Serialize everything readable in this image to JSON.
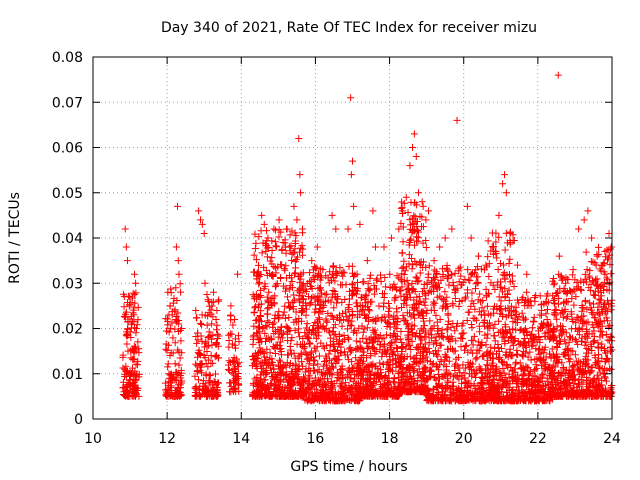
{
  "chart_data": {
    "type": "scatter",
    "title": "Day 340 of 2021, Rate Of TEC Index for receiver mizu",
    "xlabel": "GPS time / hours",
    "ylabel": "ROTI / TECUs",
    "xlim": [
      10,
      24
    ],
    "ylim": [
      0,
      0.08
    ],
    "x_ticks": [
      10,
      12,
      14,
      16,
      18,
      20,
      22,
      24
    ],
    "y_ticks": [
      0,
      0.01,
      0.02,
      0.03,
      0.04,
      0.05,
      0.06,
      0.07,
      0.08
    ],
    "x_tick_labels": [
      "10",
      "12",
      "14",
      "16",
      "18",
      "20",
      "22",
      "24"
    ],
    "y_tick_labels": [
      "0",
      "0.01",
      "0.02",
      "0.03",
      "0.04",
      "0.05",
      "0.06",
      "0.07",
      "0.08"
    ],
    "grid": true,
    "legend": "none",
    "marker": "+",
    "marker_color": "#ff0000",
    "series": [
      {
        "points": [
          [
            10.87,
            0.042
          ],
          [
            10.9,
            0.038
          ],
          [
            10.93,
            0.035
          ],
          [
            10.98,
            0.027
          ],
          [
            11.02,
            0.018
          ],
          [
            11.12,
            0.032
          ],
          [
            11.15,
            0.03
          ],
          [
            11.2,
            0.012
          ],
          [
            12.02,
            0.028
          ],
          [
            12.08,
            0.025
          ],
          [
            12.28,
            0.047
          ],
          [
            12.25,
            0.038
          ],
          [
            12.3,
            0.035
          ],
          [
            12.32,
            0.032
          ],
          [
            12.85,
            0.046
          ],
          [
            12.9,
            0.044
          ],
          [
            12.95,
            0.043
          ],
          [
            13.0,
            0.041
          ],
          [
            13.02,
            0.03
          ],
          [
            13.12,
            0.026
          ],
          [
            13.25,
            0.028
          ],
          [
            13.32,
            0.022
          ],
          [
            13.72,
            0.025
          ],
          [
            13.82,
            0.022
          ],
          [
            13.9,
            0.032
          ],
          [
            14.55,
            0.045
          ],
          [
            14.62,
            0.043
          ],
          [
            14.72,
            0.04
          ],
          [
            14.88,
            0.042
          ],
          [
            15.02,
            0.044
          ],
          [
            15.22,
            0.042
          ],
          [
            15.42,
            0.047
          ],
          [
            15.5,
            0.044
          ],
          [
            15.55,
            0.062
          ],
          [
            15.58,
            0.054
          ],
          [
            15.6,
            0.05
          ],
          [
            15.65,
            0.042
          ],
          [
            15.9,
            0.035
          ],
          [
            16.05,
            0.038
          ],
          [
            16.2,
            0.033
          ],
          [
            16.45,
            0.045
          ],
          [
            16.55,
            0.042
          ],
          [
            16.88,
            0.042
          ],
          [
            16.95,
            0.071
          ],
          [
            17.0,
            0.057
          ],
          [
            16.97,
            0.054
          ],
          [
            17.03,
            0.047
          ],
          [
            17.2,
            0.043
          ],
          [
            17.4,
            0.035
          ],
          [
            17.55,
            0.046
          ],
          [
            17.62,
            0.038
          ],
          [
            17.85,
            0.038
          ],
          [
            18.05,
            0.04
          ],
          [
            18.25,
            0.042
          ],
          [
            18.35,
            0.046
          ],
          [
            18.45,
            0.049
          ],
          [
            18.55,
            0.056
          ],
          [
            18.62,
            0.06
          ],
          [
            18.67,
            0.063
          ],
          [
            18.72,
            0.058
          ],
          [
            18.78,
            0.05
          ],
          [
            18.88,
            0.048
          ],
          [
            19.05,
            0.046
          ],
          [
            19.2,
            0.035
          ],
          [
            19.35,
            0.038
          ],
          [
            19.5,
            0.04
          ],
          [
            19.68,
            0.042
          ],
          [
            19.82,
            0.066
          ],
          [
            20.1,
            0.047
          ],
          [
            20.2,
            0.04
          ],
          [
            20.4,
            0.036
          ],
          [
            20.6,
            0.034
          ],
          [
            20.8,
            0.038
          ],
          [
            20.95,
            0.045
          ],
          [
            21.05,
            0.052
          ],
          [
            21.1,
            0.054
          ],
          [
            21.15,
            0.05
          ],
          [
            21.25,
            0.041
          ],
          [
            21.45,
            0.034
          ],
          [
            21.7,
            0.032
          ],
          [
            21.92,
            0.026
          ],
          [
            22.1,
            0.024
          ],
          [
            22.25,
            0.022
          ],
          [
            22.45,
            0.03
          ],
          [
            22.55,
            0.076
          ],
          [
            22.58,
            0.036
          ],
          [
            22.75,
            0.03
          ],
          [
            22.95,
            0.033
          ],
          [
            23.1,
            0.042
          ],
          [
            23.25,
            0.044
          ],
          [
            23.35,
            0.046
          ],
          [
            23.45,
            0.04
          ],
          [
            23.6,
            0.036
          ],
          [
            23.75,
            0.034
          ],
          [
            23.92,
            0.041
          ],
          [
            23.98,
            0.038
          ]
        ],
        "clusters": [
          {
            "x": [
              10.8,
              11.25
            ],
            "y": [
              0.003,
              0.026
            ],
            "n": 160
          },
          {
            "x": [
              11.95,
              12.4
            ],
            "y": [
              0.003,
              0.028
            ],
            "n": 130
          },
          {
            "x": [
              12.75,
              13.4
            ],
            "y": [
              0.003,
              0.026
            ],
            "n": 170
          },
          {
            "x": [
              13.65,
              13.95
            ],
            "y": [
              0.004,
              0.022
            ],
            "n": 60
          },
          {
            "x": [
              14.3,
              15.7
            ],
            "y": [
              0.003,
              0.04
            ],
            "n": 650
          },
          {
            "x": [
              15.7,
              17.2
            ],
            "y": [
              0.002,
              0.032
            ],
            "n": 600
          },
          {
            "x": [
              17.2,
              18.3
            ],
            "y": [
              0.003,
              0.03
            ],
            "n": 450
          },
          {
            "x": [
              18.3,
              19.0
            ],
            "y": [
              0.004,
              0.046
            ],
            "n": 380
          },
          {
            "x": [
              19.0,
              20.6
            ],
            "y": [
              0.002,
              0.032
            ],
            "n": 560
          },
          {
            "x": [
              20.6,
              21.4
            ],
            "y": [
              0.002,
              0.04
            ],
            "n": 380
          },
          {
            "x": [
              21.4,
              22.4
            ],
            "y": [
              0.002,
              0.026
            ],
            "n": 380
          },
          {
            "x": [
              22.4,
              23.3
            ],
            "y": [
              0.003,
              0.03
            ],
            "n": 360
          },
          {
            "x": [
              23.3,
              24.0
            ],
            "y": [
              0.003,
              0.036
            ],
            "n": 320
          }
        ]
      }
    ]
  }
}
